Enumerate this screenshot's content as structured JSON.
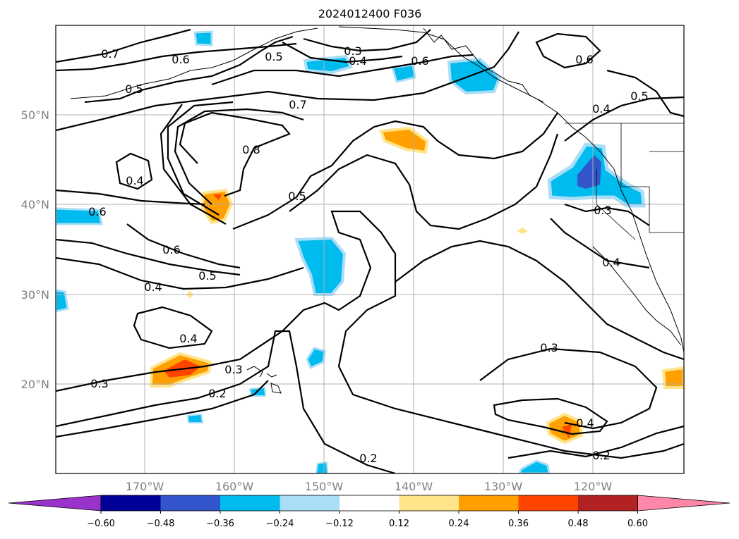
{
  "title": "2024012400 F036",
  "lat_labels": [
    "50°N",
    "40°N",
    "30°N",
    "20°N"
  ],
  "lon_labels": [
    "170°W",
    "160°W",
    "150°W",
    "140°W",
    "130°W",
    "120°W"
  ],
  "contour_labels": [
    "0.7",
    "0.6",
    "0.5",
    "0.3",
    "0.4",
    "0.6",
    "0.6",
    "0.5",
    "0.4",
    "0.7",
    "0.8",
    "0.4",
    "0.5",
    "0.3",
    "0.6",
    "0.6",
    "0.5",
    "0.4",
    "0.4",
    "0.3",
    "0.3",
    "0.3",
    "0.2",
    "0.4",
    "0.4",
    "0.2",
    "0.2",
    "0.5"
  ],
  "colorbar": {
    "ticks": [
      "−0.60",
      "−0.48",
      "−0.36",
      "−0.24",
      "−0.12",
      "0.12",
      "0.24",
      "0.36",
      "0.48",
      "0.60"
    ],
    "colors": [
      "#9933cc",
      "#000099",
      "#3355cc",
      "#00bbee",
      "#aaddf7",
      "#ffffff",
      "#ffe48a",
      "#ffa000",
      "#ff4400",
      "#b22222",
      "#ff88aa"
    ]
  },
  "chart_data": {
    "type": "map-contour",
    "title": "2024012400 F036",
    "lon_range": [
      "180°W",
      "110°W"
    ],
    "lat_range": [
      "10°N",
      "60°N"
    ],
    "contour_levels": [
      0.2,
      0.3,
      0.4,
      0.5,
      0.6,
      0.7,
      0.8
    ],
    "colorbar_levels": [
      -0.6,
      -0.48,
      -0.36,
      -0.24,
      -0.12,
      0.12,
      0.24,
      0.36,
      0.48,
      0.6
    ]
  }
}
